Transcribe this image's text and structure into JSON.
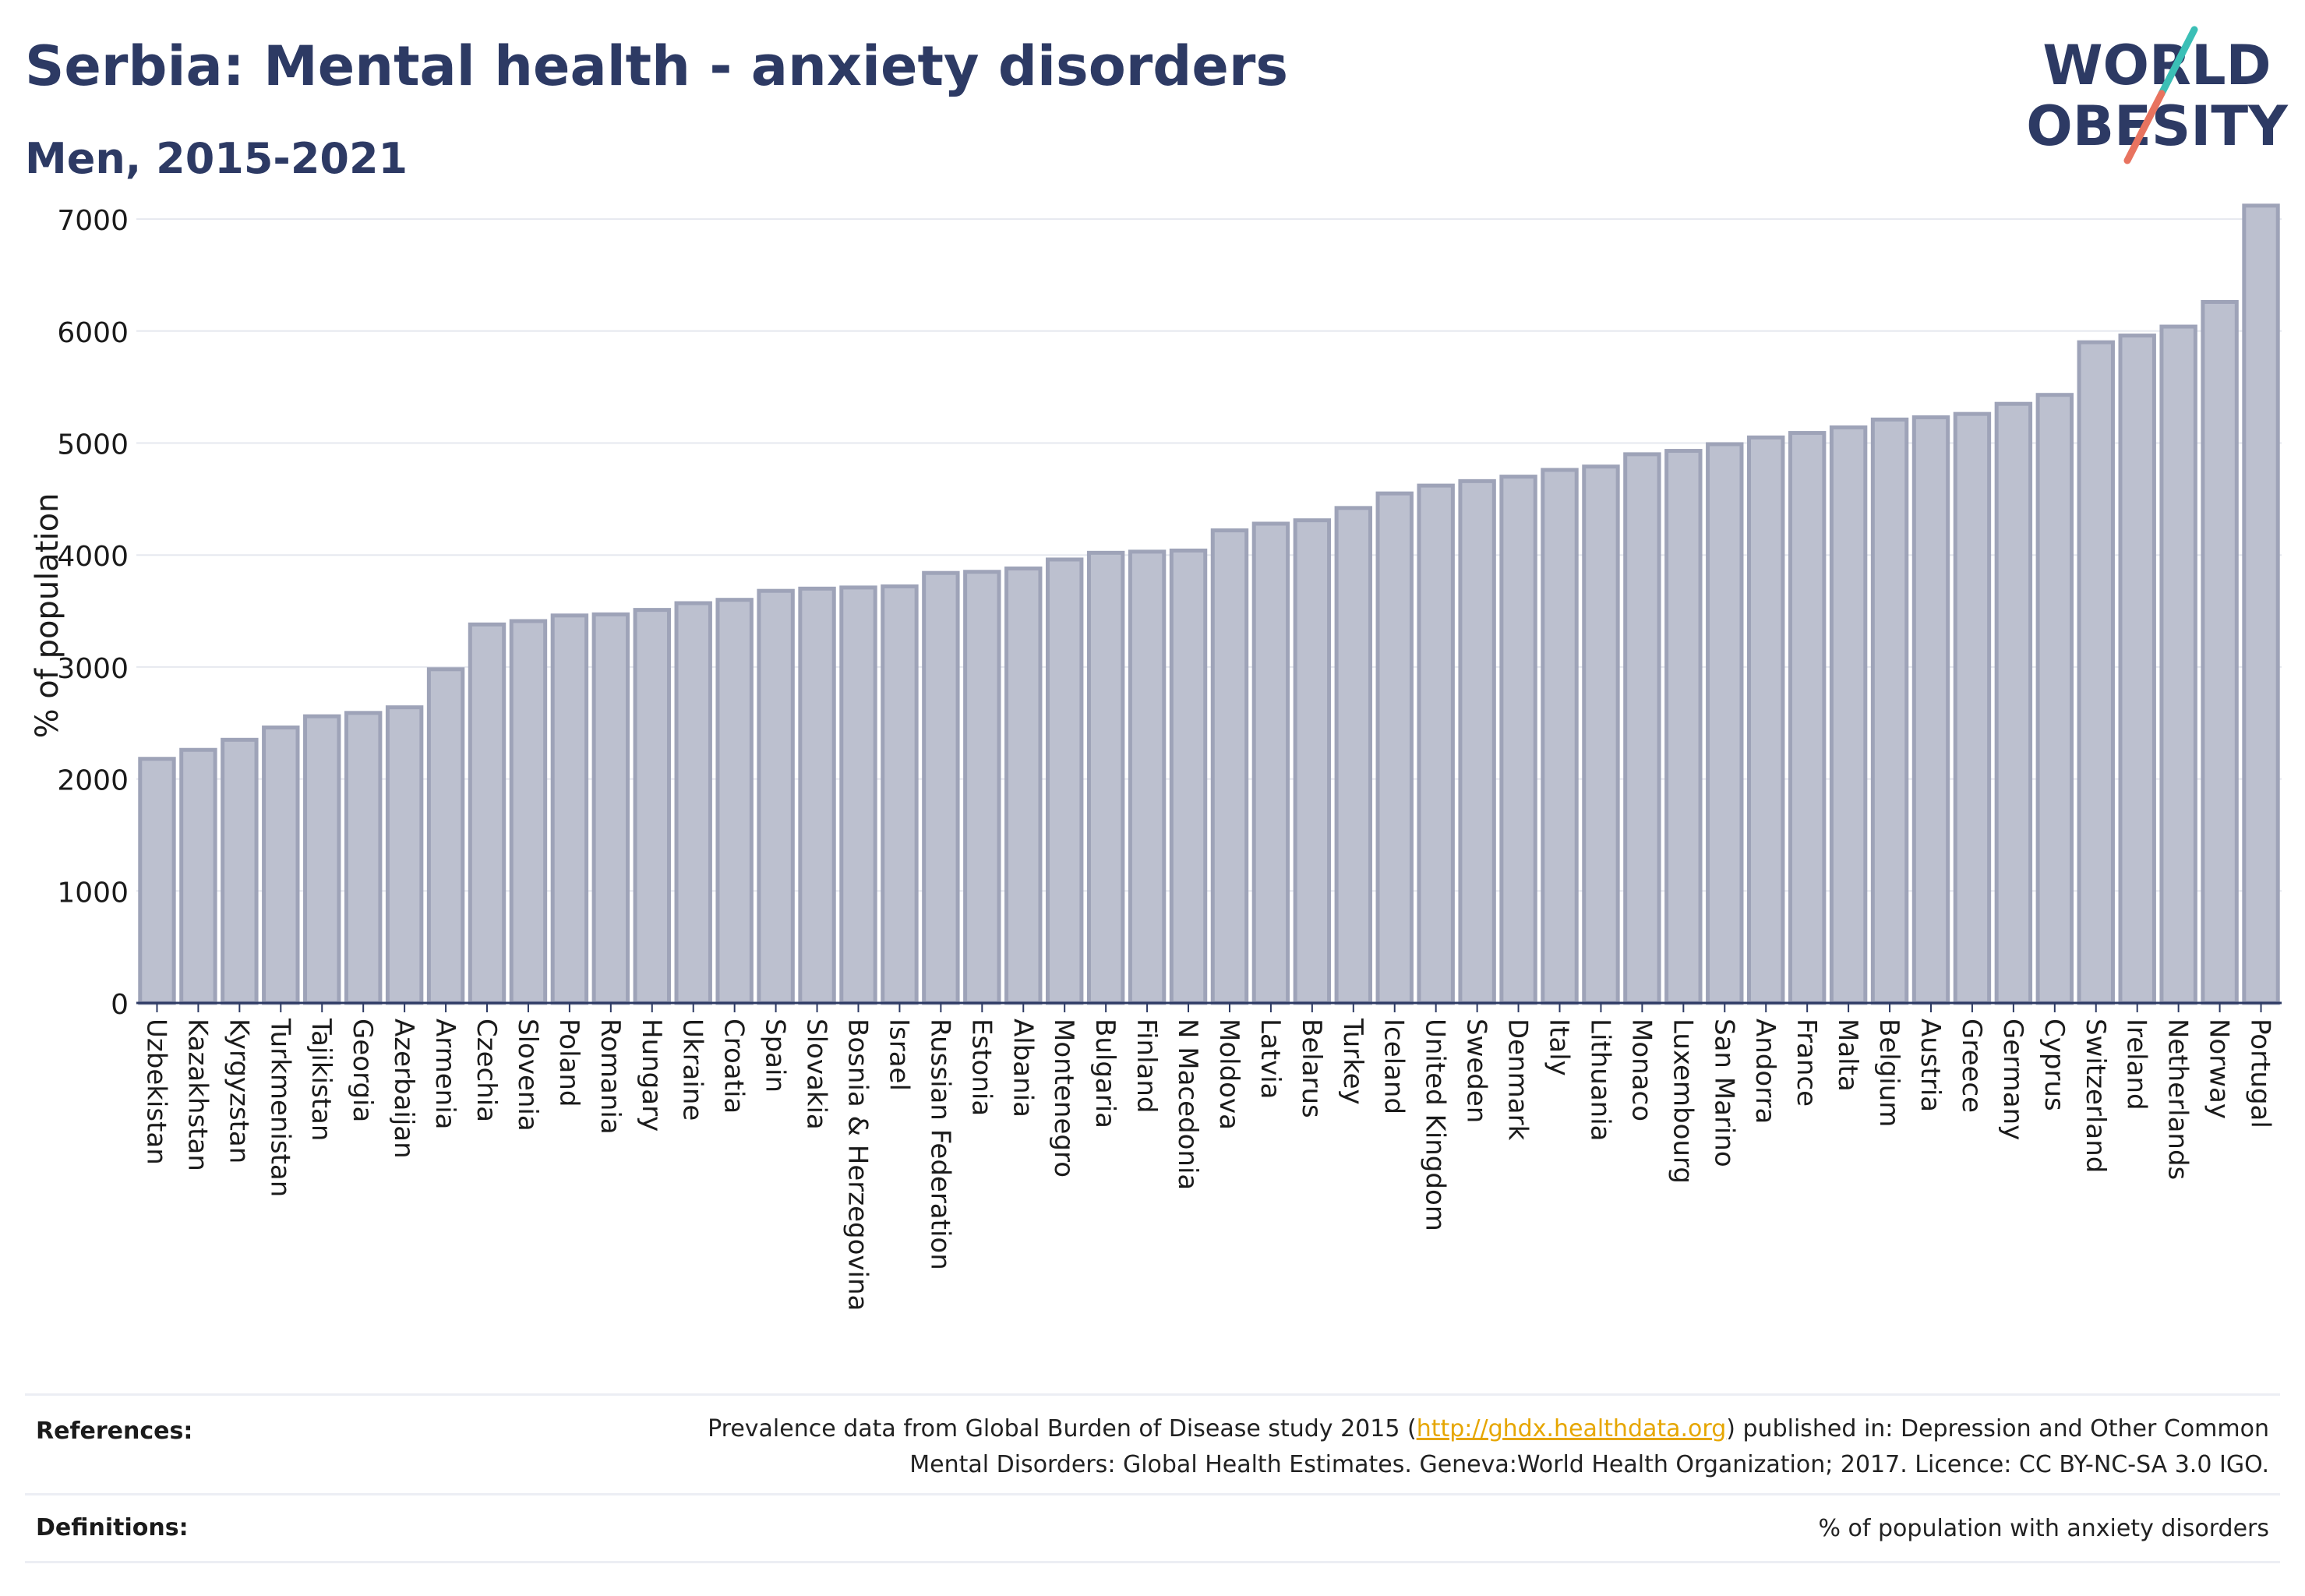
{
  "header": {
    "title": "Serbia: Mental health - anxiety disorders",
    "subtitle": "Men, 2015-2021"
  },
  "logo": {
    "line1": "WORLD",
    "line2": "OBESITY",
    "colors": {
      "text": "#2d3a64",
      "slash_teal": "#3bbfb6",
      "slash_coral": "#e8735f"
    }
  },
  "chart_data": {
    "type": "bar",
    "ylabel": "% of population",
    "ylim": [
      0,
      7300
    ],
    "yticks": [
      0,
      1000,
      2000,
      3000,
      4000,
      5000,
      6000,
      7000
    ],
    "grid": true,
    "bar_color": "#bcc0cf",
    "bar_border_color": "#9ea3b8",
    "categories": [
      "Uzbekistan",
      "Kazakhstan",
      "Kyrgyzstan",
      "Turkmenistan",
      "Tajikistan",
      "Georgia",
      "Azerbaijan",
      "Armenia",
      "Czechia",
      "Slovenia",
      "Poland",
      "Romania",
      "Hungary",
      "Ukraine",
      "Croatia",
      "Spain",
      "Slovakia",
      "Bosnia & Herzegovina",
      "Israel",
      "Russian Federation",
      "Estonia",
      "Albania",
      "Montenegro",
      "Bulgaria",
      "Finland",
      "N Macedonia",
      "Moldova",
      "Latvia",
      "Belarus",
      "Turkey",
      "Iceland",
      "United Kingdom",
      "Sweden",
      "Denmark",
      "Italy",
      "Lithuania",
      "Monaco",
      "Luxembourg",
      "San Marino",
      "Andorra",
      "France",
      "Malta",
      "Belgium",
      "Austria",
      "Greece",
      "Germany",
      "Cyprus",
      "Switzerland",
      "Ireland",
      "Netherlands",
      "Norway",
      "Portugal"
    ],
    "values": [
      2180,
      2260,
      2350,
      2460,
      2560,
      2590,
      2640,
      2980,
      3380,
      3410,
      3460,
      3470,
      3510,
      3570,
      3600,
      3680,
      3700,
      3710,
      3720,
      3840,
      3850,
      3880,
      3960,
      4020,
      4030,
      4040,
      4220,
      4280,
      4310,
      4420,
      4550,
      4620,
      4660,
      4700,
      4760,
      4790,
      4900,
      4930,
      4990,
      5050,
      5090,
      5140,
      5210,
      5230,
      5260,
      5350,
      5430,
      5900,
      5960,
      6040,
      6260,
      7120
    ]
  },
  "references": {
    "label": "References:",
    "text_before": "Prevalence data from Global Burden of Disease study 2015 (",
    "link": "http://ghdx.healthdata.org",
    "text_after": ") published in: Depression and Other Common",
    "line2": "Mental Disorders: Global Health Estimates. Geneva:World Health Organization; 2017. Licence: CC BY-NC-SA 3.0 IGO."
  },
  "definitions": {
    "label": "Definitions:",
    "text": "% of population with anxiety disorders"
  }
}
